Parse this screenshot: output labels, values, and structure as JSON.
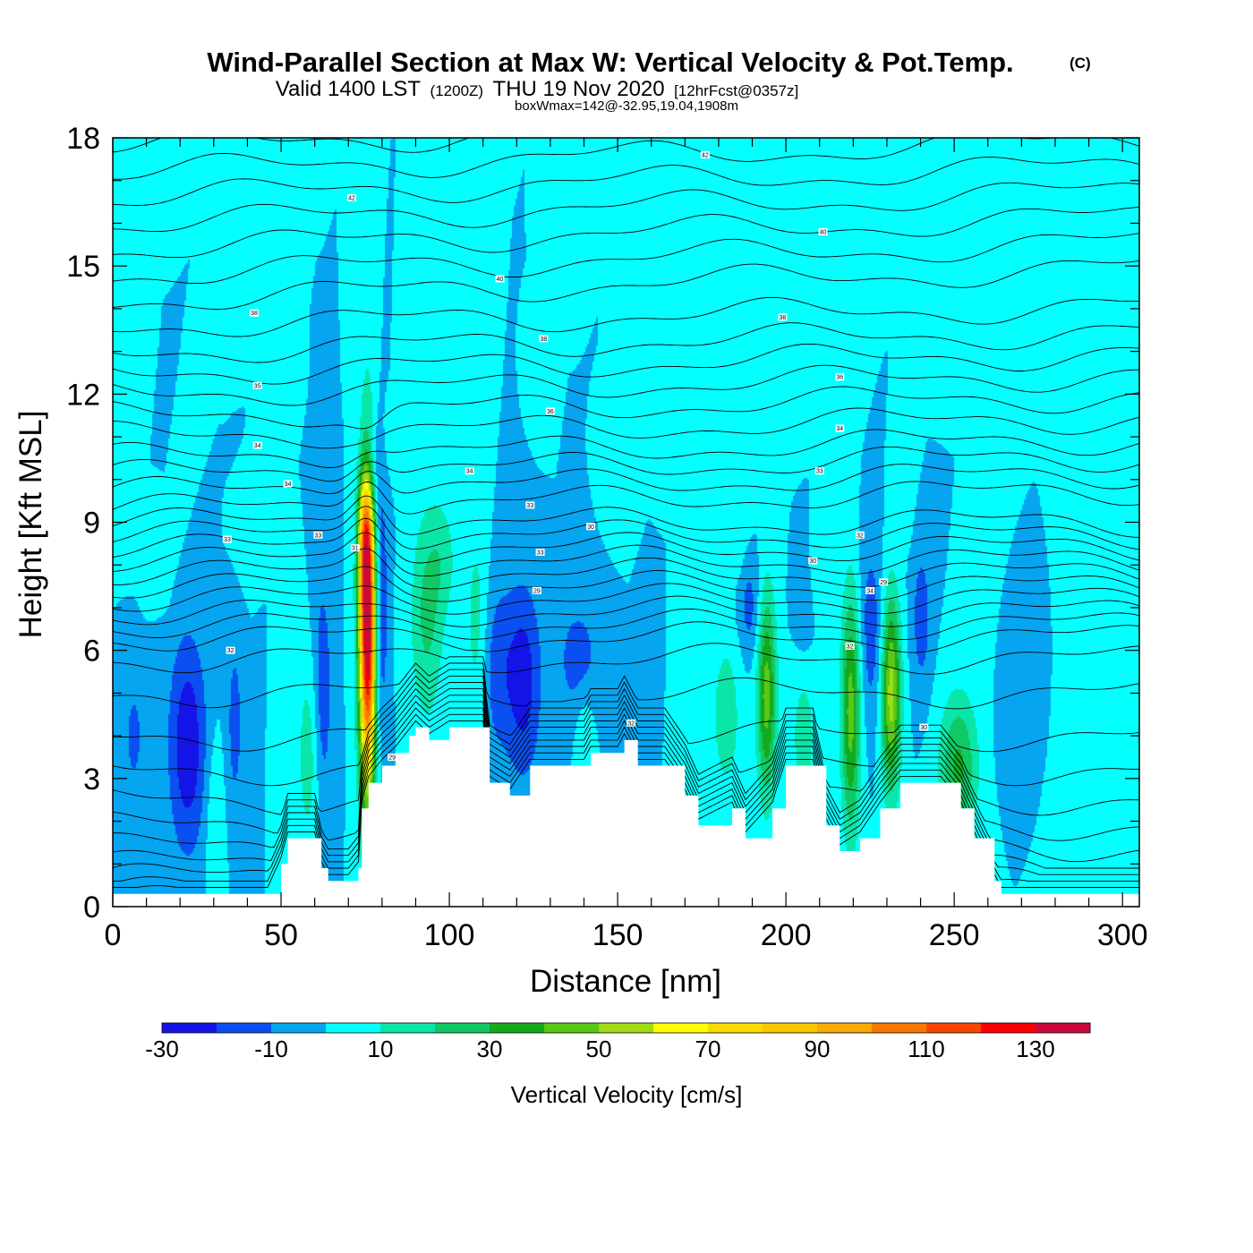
{
  "title": {
    "main": "Wind-Parallel Section at Max W: Vertical Velocity & Pot.Temp.",
    "copyright": "(C)",
    "valid_prefix": "Valid 1400 LST",
    "valid_utc": "(1200Z)",
    "valid_date": "THU 19 Nov 2020",
    "forecast": "[12hrFcst@0357z]",
    "box_info": "boxWmax=142@-32.95,19.04,1908m"
  },
  "chart_data": {
    "type": "heatmap",
    "title": "Wind-Parallel Section at Max W: Vertical Velocity & Pot.Temp.",
    "xlabel": "Distance [nm]",
    "ylabel": "Height [Kft MSL]",
    "xlim": [
      0,
      305
    ],
    "ylim": [
      0,
      18
    ],
    "xticks": [
      0,
      50,
      100,
      150,
      200,
      250,
      300
    ],
    "yticks": [
      0,
      3,
      6,
      9,
      12,
      15,
      18
    ],
    "colorbar": {
      "label": "Vertical Velocity [cm/s]",
      "levels": [
        -30,
        -20,
        -10,
        0,
        10,
        20,
        30,
        40,
        50,
        60,
        70,
        80,
        90,
        100,
        110,
        120,
        130,
        140
      ],
      "tick_labels": [
        "-30",
        "-10",
        "10",
        "30",
        "50",
        "70",
        "90",
        "110",
        "130"
      ],
      "colors": [
        "#1414e6",
        "#0a50f0",
        "#05a5f0",
        "#05ffff",
        "#0ae6a8",
        "#10c864",
        "#14aa1e",
        "#5ac814",
        "#a0dc14",
        "#ffff00",
        "#fadc00",
        "#fac800",
        "#faaa00",
        "#fa7800",
        "#fa4600",
        "#fa0000",
        "#c80a3c"
      ]
    },
    "background_w": 0,
    "terrain_kft": [
      [
        0,
        0.3
      ],
      [
        46,
        0.3
      ],
      [
        50,
        1.0
      ],
      [
        52,
        1.6
      ],
      [
        60,
        1.6
      ],
      [
        62,
        0.9
      ],
      [
        64,
        0.6
      ],
      [
        70,
        0.6
      ],
      [
        73,
        0.9
      ],
      [
        74,
        2.3
      ],
      [
        76,
        2.9
      ],
      [
        80,
        3.3
      ],
      [
        84,
        3.6
      ],
      [
        88,
        4.0
      ],
      [
        90,
        4.2
      ],
      [
        94,
        3.9
      ],
      [
        100,
        4.2
      ],
      [
        110,
        4.2
      ],
      [
        112,
        2.9
      ],
      [
        118,
        2.6
      ],
      [
        124,
        3.3
      ],
      [
        140,
        3.3
      ],
      [
        142,
        3.6
      ],
      [
        150,
        3.6
      ],
      [
        152,
        3.9
      ],
      [
        156,
        3.3
      ],
      [
        164,
        3.3
      ],
      [
        170,
        2.6
      ],
      [
        174,
        1.9
      ],
      [
        184,
        2.3
      ],
      [
        188,
        1.6
      ],
      [
        196,
        2.3
      ],
      [
        200,
        3.3
      ],
      [
        208,
        3.3
      ],
      [
        212,
        1.9
      ],
      [
        216,
        1.3
      ],
      [
        222,
        1.6
      ],
      [
        228,
        2.3
      ],
      [
        234,
        2.9
      ],
      [
        246,
        2.9
      ],
      [
        252,
        2.3
      ],
      [
        256,
        1.6
      ],
      [
        262,
        0.6
      ],
      [
        264,
        0.3
      ],
      [
        305,
        0.3
      ]
    ],
    "updrafts": [
      {
        "x": 75.5,
        "y": 6.5,
        "sx": 1.8,
        "sy": 2.7,
        "w": 142
      },
      {
        "x": 74.5,
        "y": 8.6,
        "sx": 1.4,
        "sy": 1.2,
        "w": 40
      },
      {
        "x": 93,
        "y": 6.8,
        "sx": 3.5,
        "sy": 1.8,
        "w": 22
      },
      {
        "x": 108,
        "y": 6.5,
        "sx": 2.5,
        "sy": 1.8,
        "w": 16
      },
      {
        "x": 194,
        "y": 5.0,
        "sx": 2.0,
        "sy": 1.7,
        "w": 45
      },
      {
        "x": 219,
        "y": 4.6,
        "sx": 2.0,
        "sy": 2.0,
        "w": 45
      },
      {
        "x": 231,
        "y": 5.0,
        "sx": 2.0,
        "sy": 1.6,
        "w": 55
      },
      {
        "x": 251,
        "y": 3.3,
        "sx": 4.0,
        "sy": 1.2,
        "w": 32
      },
      {
        "x": 58,
        "y": 3.6,
        "sx": 2.5,
        "sy": 1.6,
        "w": 16
      },
      {
        "x": 30,
        "y": 2.0,
        "sx": 2.0,
        "sy": 1.5,
        "w": 10
      },
      {
        "x": 98,
        "y": 8.2,
        "sx": 3.0,
        "sy": 1.0,
        "w": 12
      },
      {
        "x": 140,
        "y": 4.0,
        "sx": 2.0,
        "sy": 0.8,
        "w": 12
      },
      {
        "x": 182,
        "y": 4.5,
        "sx": 3.5,
        "sy": 1.5,
        "w": 15
      },
      {
        "x": 205,
        "y": 4.0,
        "sx": 3.0,
        "sy": 1.3,
        "w": 14
      },
      {
        "x": 290,
        "y": 1.5,
        "sx": 5.0,
        "sy": 1.2,
        "w": 10
      }
    ],
    "downdrafts": [
      {
        "x": 22,
        "y": 3.8,
        "sx": 4.0,
        "sy": 1.8,
        "w": -28
      },
      {
        "x": 6,
        "y": 4.0,
        "sx": 2.0,
        "sy": 0.9,
        "w": -14
      },
      {
        "x": 36,
        "y": 4.3,
        "sx": 1.8,
        "sy": 1.6,
        "w": -14
      },
      {
        "x": 62,
        "y": 5.0,
        "sx": 2.0,
        "sy": 2.0,
        "w": -18
      },
      {
        "x": 79,
        "y": 7.0,
        "sx": 1.6,
        "sy": 2.2,
        "w": -26
      },
      {
        "x": 76,
        "y": 10.4,
        "sx": 2.0,
        "sy": 0.9,
        "w": -22
      },
      {
        "x": 114,
        "y": 5.6,
        "sx": 4.0,
        "sy": 1.5,
        "w": -16
      },
      {
        "x": 122,
        "y": 5.3,
        "sx": 3.5,
        "sy": 1.6,
        "w": -24
      },
      {
        "x": 138,
        "y": 5.8,
        "sx": 5.0,
        "sy": 1.1,
        "w": -14
      },
      {
        "x": 189,
        "y": 7.0,
        "sx": 2.5,
        "sy": 0.9,
        "w": -14
      },
      {
        "x": 205,
        "y": 7.0,
        "sx": 2.0,
        "sy": 0.7,
        "w": -12
      },
      {
        "x": 225,
        "y": 6.5,
        "sx": 2.5,
        "sy": 1.5,
        "w": -16
      },
      {
        "x": 240,
        "y": 6.8,
        "sx": 2.0,
        "sy": 1.2,
        "w": -16
      },
      {
        "x": 268,
        "y": 4.0,
        "sx": 3.0,
        "sy": 0.8,
        "w": -10
      }
    ],
    "streaks": [
      {
        "x0": 4,
        "y0": 9.5,
        "x1": 8,
        "y1": 17.5,
        "width": 3,
        "w": 8
      },
      {
        "x0": 16,
        "y0": 8.0,
        "x1": 30,
        "y1": 14.0,
        "width": 3,
        "w": 8
      },
      {
        "x0": 40,
        "y0": 8.5,
        "x1": 48,
        "y1": 12.5,
        "width": 2.5,
        "w": 7
      },
      {
        "x0": 56,
        "y0": 16.5,
        "x1": 58,
        "y1": 18.0,
        "width": 1.5,
        "w": 7
      },
      {
        "x0": 84,
        "y0": 11.0,
        "x1": 90,
        "y1": 17.5,
        "width": 3,
        "w": 8
      },
      {
        "x0": 94,
        "y0": 13.0,
        "x1": 100,
        "y1": 18.0,
        "width": 3,
        "w": 8
      },
      {
        "x0": 128,
        "y0": 12.0,
        "x1": 130,
        "y1": 15.5,
        "width": 2,
        "w": 7
      },
      {
        "x0": 152,
        "y0": 9.5,
        "x1": 158,
        "y1": 12.5,
        "width": 3,
        "w": 8
      },
      {
        "x0": 164,
        "y0": 12.0,
        "x1": 170,
        "y1": 18.0,
        "width": 3,
        "w": 8
      },
      {
        "x0": 186,
        "y0": 8.5,
        "x1": 194,
        "y1": 11.5,
        "width": 3,
        "w": 8
      },
      {
        "x0": 196,
        "y0": 16.5,
        "x1": 198,
        "y1": 18.0,
        "width": 3,
        "w": 8
      },
      {
        "x0": 212,
        "y0": 7.5,
        "x1": 232,
        "y1": 18.0,
        "width": 4,
        "w": 9
      },
      {
        "x0": 236,
        "y0": 9.5,
        "x1": 240,
        "y1": 13.0,
        "width": 2.5,
        "w": 8
      },
      {
        "x0": 254,
        "y0": 15.0,
        "x1": 258,
        "y1": 18.0,
        "width": 2,
        "w": 7
      },
      {
        "x0": 302,
        "y0": 10.0,
        "x1": 304,
        "y1": 15.0,
        "width": 1.5,
        "w": 7
      }
    ],
    "isentropes": {
      "y_left_kft": [
        0.2,
        0.4,
        0.7,
        1.0,
        1.4,
        1.9,
        2.5,
        3.2,
        4.0,
        5.0,
        5.8,
        6.3,
        6.6,
        6.9,
        7.2,
        7.5,
        7.8,
        8.1,
        8.4,
        8.7,
        9.0,
        9.3,
        9.7,
        10.1,
        10.5,
        11.0,
        11.5,
        12.0,
        12.5,
        13.0,
        13.6,
        14.2,
        14.8,
        15.4,
        16.0,
        16.6,
        17.2,
        17.8
      ],
      "labels": [
        {
          "text": "32",
          "x": 35,
          "y": 6.0
        },
        {
          "text": "33",
          "x": 34,
          "y": 8.6
        },
        {
          "text": "33",
          "x": 61,
          "y": 8.7
        },
        {
          "text": "34",
          "x": 52,
          "y": 9.9
        },
        {
          "text": "34",
          "x": 43,
          "y": 10.8
        },
        {
          "text": "35",
          "x": 43,
          "y": 12.2
        },
        {
          "text": "38",
          "x": 42,
          "y": 13.9
        },
        {
          "text": "42",
          "x": 71,
          "y": 16.6
        },
        {
          "text": "40",
          "x": 115,
          "y": 14.7
        },
        {
          "text": "38",
          "x": 128,
          "y": 13.3
        },
        {
          "text": "36",
          "x": 130,
          "y": 11.6
        },
        {
          "text": "34",
          "x": 106,
          "y": 10.2
        },
        {
          "text": "33",
          "x": 124,
          "y": 9.4
        },
        {
          "text": "33",
          "x": 127,
          "y": 8.3
        },
        {
          "text": "30",
          "x": 142,
          "y": 8.9
        },
        {
          "text": "29",
          "x": 126,
          "y": 7.4
        },
        {
          "text": "31",
          "x": 72,
          "y": 8.4
        },
        {
          "text": "42",
          "x": 176,
          "y": 17.6
        },
        {
          "text": "40",
          "x": 211,
          "y": 15.8
        },
        {
          "text": "38",
          "x": 199,
          "y": 13.8
        },
        {
          "text": "36",
          "x": 216,
          "y": 12.4
        },
        {
          "text": "34",
          "x": 216,
          "y": 11.2
        },
        {
          "text": "33",
          "x": 210,
          "y": 10.2
        },
        {
          "text": "32",
          "x": 222,
          "y": 8.7
        },
        {
          "text": "30",
          "x": 208,
          "y": 8.1
        },
        {
          "text": "29",
          "x": 229,
          "y": 7.6
        },
        {
          "text": "34",
          "x": 225,
          "y": 7.4
        },
        {
          "text": "32",
          "x": 219,
          "y": 6.1
        },
        {
          "text": "32",
          "x": 154,
          "y": 4.3
        },
        {
          "text": "30",
          "x": 241,
          "y": 4.2
        },
        {
          "text": "29",
          "x": 83,
          "y": 3.5
        }
      ]
    }
  }
}
